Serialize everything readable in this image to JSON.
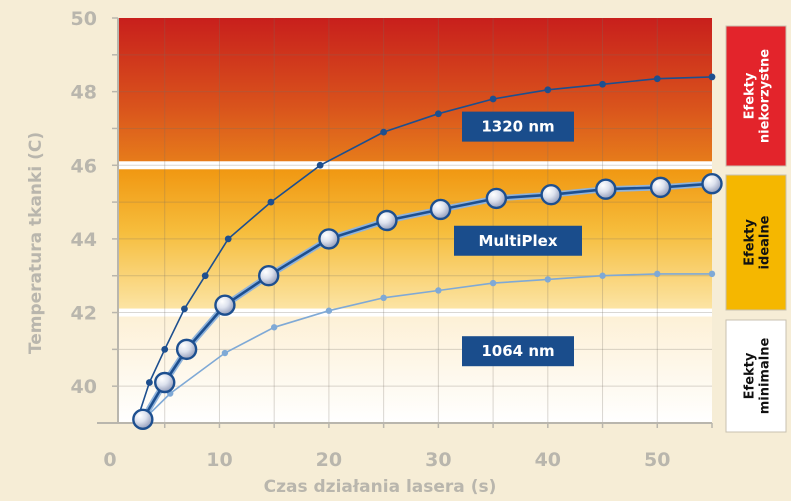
{
  "chart_data": {
    "type": "line",
    "xlabel": "Czas działania lasera (s)",
    "ylabel": "Temperatura tkanki (C)",
    "xlim": [
      0,
      55
    ],
    "ylim": [
      39,
      50
    ],
    "x_ticks": [
      "0",
      "10",
      "20",
      "30",
      "40",
      "50"
    ],
    "y_ticks": [
      "40",
      "42",
      "44",
      "46",
      "48",
      "50"
    ],
    "grid": true,
    "zones": [
      {
        "label": "Efekty niekorzystne",
        "from": 46,
        "to": 50,
        "color": "#e02a2a"
      },
      {
        "label": "Efekty idealne",
        "from": 42,
        "to": 46,
        "color": "#f4b400"
      },
      {
        "label": "Efekty minimalne",
        "from": 39,
        "to": 42,
        "color": "#ffffff"
      }
    ],
    "series": [
      {
        "name": "1320 nm",
        "color": "#1d4f8f",
        "x": [
          2.5,
          3.6,
          5,
          6.8,
          8.7,
          10.8,
          14.7,
          19.2,
          25,
          30,
          35,
          40,
          45,
          50,
          55
        ],
        "y": [
          39.1,
          40.1,
          41.0,
          42.1,
          43.0,
          44.0,
          45.0,
          46.0,
          46.9,
          47.4,
          47.8,
          48.05,
          48.2,
          48.35,
          48.4
        ]
      },
      {
        "name": "MultiPlex",
        "color": "#1d4f8f",
        "x": [
          3,
          5,
          7,
          10.5,
          14.5,
          20,
          25.3,
          30.2,
          35.3,
          40.3,
          45.3,
          50.3,
          55
        ],
        "y": [
          39.1,
          40.1,
          41.0,
          42.2,
          43.0,
          44.0,
          44.5,
          44.8,
          45.1,
          45.2,
          45.35,
          45.4,
          45.5
        ]
      },
      {
        "name": "1064 nm",
        "color": "#7fa9d6",
        "x": [
          3.1,
          5.5,
          10.5,
          15,
          20,
          25,
          30,
          35,
          40,
          45,
          50,
          55
        ],
        "y": [
          39.1,
          39.8,
          40.9,
          41.6,
          42.05,
          42.4,
          42.6,
          42.8,
          42.9,
          43.0,
          43.05,
          43.05
        ]
      }
    ],
    "series_tags": [
      "1320 nm",
      "MultiPlex",
      "1064 nm"
    ]
  }
}
